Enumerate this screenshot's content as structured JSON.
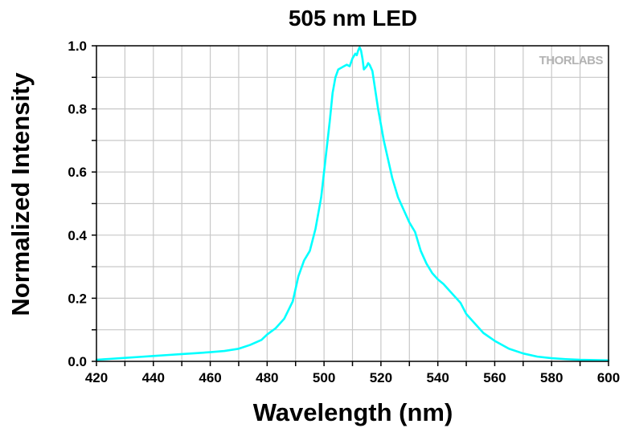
{
  "chart_data": {
    "type": "line",
    "title": "505 nm LED",
    "xlabel": "Wavelength (nm)",
    "ylabel": "Normalized Intensity",
    "xlim": [
      420,
      600
    ],
    "ylim": [
      0.0,
      1.0
    ],
    "x_ticks": [
      420,
      440,
      460,
      480,
      500,
      520,
      540,
      560,
      580,
      600
    ],
    "y_ticks": [
      "0.0",
      "0.2",
      "0.4",
      "0.6",
      "0.8",
      "1.0"
    ],
    "grid": true,
    "watermark": "THORLABS",
    "series": [
      {
        "color": "#00ffff",
        "x": [
          420,
          425,
          430,
          435,
          440,
          445,
          450,
          455,
          460,
          465,
          470,
          474,
          478,
          480,
          483,
          486,
          489,
          491,
          493,
          495,
          497,
          499,
          500,
          502,
          503,
          504,
          505,
          506,
          507,
          508,
          509,
          510,
          511,
          511.5,
          512,
          512.5,
          513,
          513.5,
          514,
          515,
          515.5,
          516,
          517,
          518,
          519,
          520,
          521,
          522,
          523,
          524,
          526,
          528,
          530,
          532,
          534,
          536,
          538,
          540,
          542,
          544,
          546,
          548,
          550,
          553,
          556,
          560,
          565,
          570,
          575,
          580,
          585,
          590,
          595,
          600
        ],
        "y": [
          0.005,
          0.008,
          0.011,
          0.014,
          0.017,
          0.02,
          0.023,
          0.026,
          0.029,
          0.033,
          0.04,
          0.052,
          0.068,
          0.085,
          0.105,
          0.135,
          0.19,
          0.27,
          0.32,
          0.35,
          0.42,
          0.52,
          0.6,
          0.76,
          0.85,
          0.9,
          0.925,
          0.93,
          0.935,
          0.94,
          0.935,
          0.96,
          0.975,
          0.97,
          0.985,
          0.995,
          0.985,
          0.96,
          0.925,
          0.935,
          0.945,
          0.94,
          0.92,
          0.86,
          0.8,
          0.75,
          0.7,
          0.66,
          0.62,
          0.58,
          0.52,
          0.48,
          0.44,
          0.41,
          0.35,
          0.31,
          0.28,
          0.26,
          0.245,
          0.225,
          0.205,
          0.185,
          0.15,
          0.12,
          0.09,
          0.065,
          0.04,
          0.025,
          0.015,
          0.01,
          0.007,
          0.005,
          0.004,
          0.003
        ]
      }
    ]
  }
}
